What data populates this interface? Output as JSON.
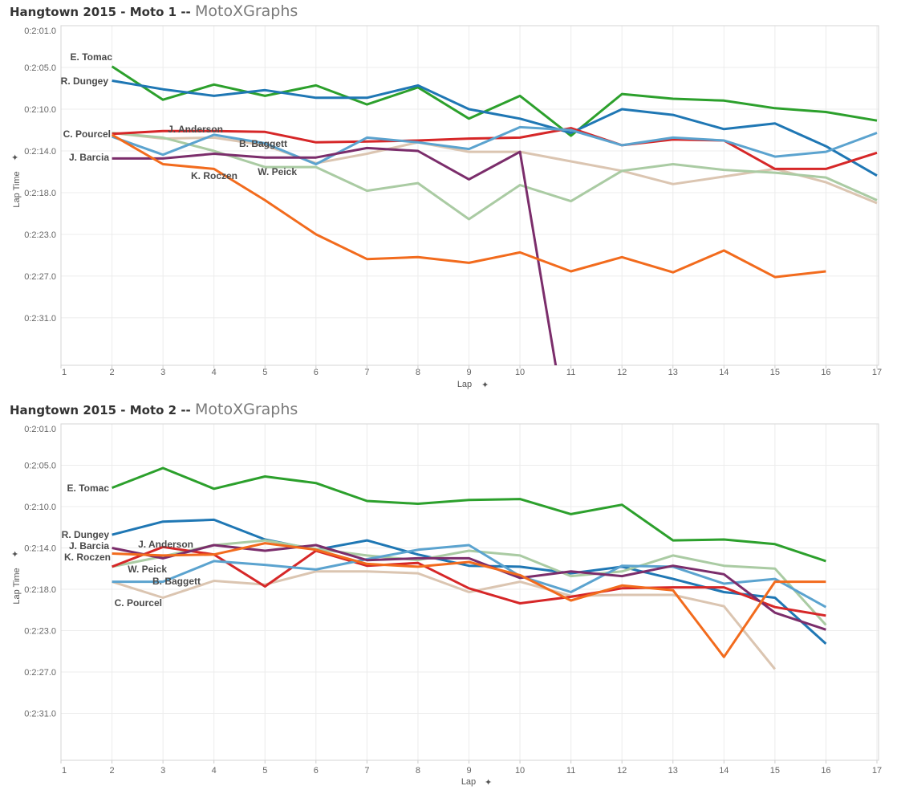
{
  "chart_data": [
    {
      "type": "line",
      "title": "Hangtown 2015 - Moto 1 -- ",
      "brand": "MotoXGraphs",
      "xlabel": "Lap",
      "ylabel": "Lap Time",
      "pin_icon": "pin-icon",
      "x_ticks": [
        "1",
        "2",
        "3",
        "4",
        "5",
        "6",
        "7",
        "8",
        "9",
        "10",
        "11",
        "12",
        "13",
        "14",
        "15",
        "16",
        "17"
      ],
      "y_ticks": [
        {
          "label": "0:2:01.0",
          "value": 121.1
        },
        {
          "label": "0:2:05.0",
          "value": 125.0
        },
        {
          "label": "0:2:10.0",
          "value": 129.4
        },
        {
          "label": "0:2:14.0",
          "value": 133.8
        },
        {
          "label": "0:2:18.0",
          "value": 138.2
        },
        {
          "label": "0:2:23.0",
          "value": 142.6
        },
        {
          "label": "0:2:27.0",
          "value": 147.0
        },
        {
          "label": "0:2:31.0",
          "value": 151.4
        }
      ],
      "ylim": [
        120.6,
        156.4
      ],
      "y_inverted": true,
      "xlim": [
        1,
        17
      ],
      "grid": true,
      "series": [
        {
          "name": "E. Tomac",
          "color": "#2ca02c",
          "start_lap": 2,
          "values": [
            124.9,
            128.4,
            126.8,
            128.0,
            126.9,
            128.9,
            127.1,
            130.4,
            128.0,
            132.2,
            127.8,
            128.3,
            128.5,
            129.3,
            129.7,
            130.6
          ]
        },
        {
          "name": "R. Dungey",
          "color": "#1f77b4",
          "start_lap": 2,
          "values": [
            126.4,
            127.3,
            128.0,
            127.4,
            128.2,
            128.2,
            126.9,
            129.4,
            130.4,
            131.9,
            129.4,
            130.0,
            131.5,
            130.9,
            133.3,
            136.4
          ]
        },
        {
          "name": "C. Pourcel",
          "color": "#dbc5b1",
          "start_lap": 2,
          "values": [
            131.9,
            132.5,
            132.4,
            133.2,
            135.1,
            134.1,
            132.9,
            133.9,
            133.9,
            134.9,
            135.9,
            137.3,
            136.5,
            135.7,
            137.1,
            139.3
          ]
        },
        {
          "name": "W. Peick",
          "color": "#aacba3",
          "start_lap": 2,
          "values": [
            131.9,
            132.4,
            133.8,
            135.5,
            135.5,
            138.0,
            137.2,
            141.0,
            137.4,
            139.1,
            135.9,
            135.2,
            135.8,
            136.1,
            136.6,
            139.0
          ]
        },
        {
          "name": "J. Anderson",
          "color": "#d62728",
          "start_lap": 2,
          "values": [
            132.0,
            131.7,
            131.7,
            131.8,
            132.9,
            132.8,
            132.7,
            132.5,
            132.4,
            131.4,
            133.2,
            132.6,
            132.7,
            135.7,
            135.7,
            134.0
          ]
        },
        {
          "name": "B. Baggett",
          "color": "#5ba3cf",
          "start_lap": 2,
          "values": [
            132.3,
            134.2,
            132.1,
            133.0,
            135.2,
            132.4,
            132.9,
            133.6,
            131.3,
            131.6,
            133.2,
            132.4,
            132.7,
            134.4,
            133.9,
            131.9
          ]
        },
        {
          "name": "J. Barcia",
          "color": "#7b2d6b",
          "start_lap": 2,
          "values": [
            134.6,
            134.6,
            134.1,
            134.5,
            134.5,
            133.5,
            133.8,
            136.8,
            133.9,
            166.0
          ]
        },
        {
          "name": "K. Roczen",
          "color": "#f26b1d",
          "start_lap": 2,
          "values": [
            132.1,
            135.2,
            135.7,
            139.0,
            142.6,
            145.2,
            145.0,
            145.6,
            144.5,
            146.5,
            145.0,
            146.6,
            144.3,
            147.1,
            146.5
          ]
        }
      ]
    },
    {
      "type": "line",
      "title": "Hangtown 2015 - Moto 2 -- ",
      "brand": "MotoXGraphs",
      "xlabel": "Lap",
      "ylabel": "Lap Time",
      "pin_icon": "pin-icon",
      "x_ticks": [
        "1",
        "2",
        "3",
        "4",
        "5",
        "6",
        "7",
        "8",
        "9",
        "10",
        "11",
        "12",
        "13",
        "14",
        "15",
        "16",
        "17"
      ],
      "y_ticks": [
        {
          "label": "0:2:01.0",
          "value": 121.1
        },
        {
          "label": "0:2:05.0",
          "value": 125.0
        },
        {
          "label": "0:2:10.0",
          "value": 129.4
        },
        {
          "label": "0:2:14.0",
          "value": 133.8
        },
        {
          "label": "0:2:18.0",
          "value": 138.2
        },
        {
          "label": "0:2:23.0",
          "value": 142.6
        },
        {
          "label": "0:2:27.0",
          "value": 147.0
        },
        {
          "label": "0:2:31.0",
          "value": 151.4
        }
      ],
      "ylim": [
        120.6,
        156.4
      ],
      "y_inverted": true,
      "xlim": [
        1,
        17
      ],
      "grid": true,
      "series": [
        {
          "name": "E. Tomac",
          "color": "#2ca02c",
          "start_lap": 2,
          "values": [
            127.4,
            125.3,
            127.5,
            126.2,
            126.9,
            128.8,
            129.1,
            128.7,
            128.6,
            130.2,
            129.2,
            133.0,
            132.9,
            133.4,
            135.2
          ]
        },
        {
          "name": "R. Dungey",
          "color": "#1f77b4",
          "start_lap": 2,
          "values": [
            132.4,
            131.0,
            130.8,
            132.9,
            134.0,
            133.0,
            134.5,
            135.7,
            135.8,
            136.5,
            135.8,
            137.1,
            138.5,
            139.1,
            144.0
          ]
        },
        {
          "name": "C. Pourcel",
          "color": "#dbc5b1",
          "start_lap": 2,
          "values": [
            137.4,
            139.1,
            137.3,
            137.7,
            136.3,
            136.3,
            136.5,
            138.5,
            137.4,
            138.9,
            138.8,
            138.8,
            140.0,
            146.7
          ]
        },
        {
          "name": "W. Peick",
          "color": "#aacba3",
          "start_lap": 2,
          "values": [
            135.8,
            134.7,
            133.5,
            133.0,
            133.9,
            134.6,
            135.1,
            134.1,
            134.6,
            136.8,
            136.3,
            134.6,
            135.7,
            136.0,
            142.0
          ]
        },
        {
          "name": "J. Anderson",
          "color": "#d62728",
          "start_lap": 2,
          "values": [
            135.8,
            133.7,
            134.5,
            137.9,
            134.1,
            135.7,
            135.4,
            138.1,
            139.7,
            139.0,
            138.1,
            138.0,
            138.0,
            140.1,
            141.0
          ]
        },
        {
          "name": "B. Baggett",
          "color": "#5ba3cf",
          "start_lap": 2,
          "values": [
            137.4,
            137.4,
            135.2,
            135.6,
            136.1,
            135.0,
            134.0,
            133.5,
            136.8,
            138.5,
            135.7,
            135.8,
            137.6,
            137.1,
            140.1
          ]
        },
        {
          "name": "J. Barcia",
          "color": "#7b2d6b",
          "start_lap": 2,
          "values": [
            133.8,
            134.9,
            133.5,
            134.1,
            133.5,
            135.1,
            134.9,
            134.9,
            137.0,
            136.3,
            136.8,
            135.7,
            136.6,
            140.7,
            142.5
          ]
        },
        {
          "name": "K. Roczen",
          "color": "#f26b1d",
          "start_lap": 2,
          "values": [
            134.4,
            134.6,
            134.5,
            133.3,
            134.0,
            135.5,
            135.8,
            135.3,
            136.7,
            139.4,
            137.8,
            138.3,
            145.4,
            137.4,
            137.4
          ]
        }
      ]
    }
  ]
}
